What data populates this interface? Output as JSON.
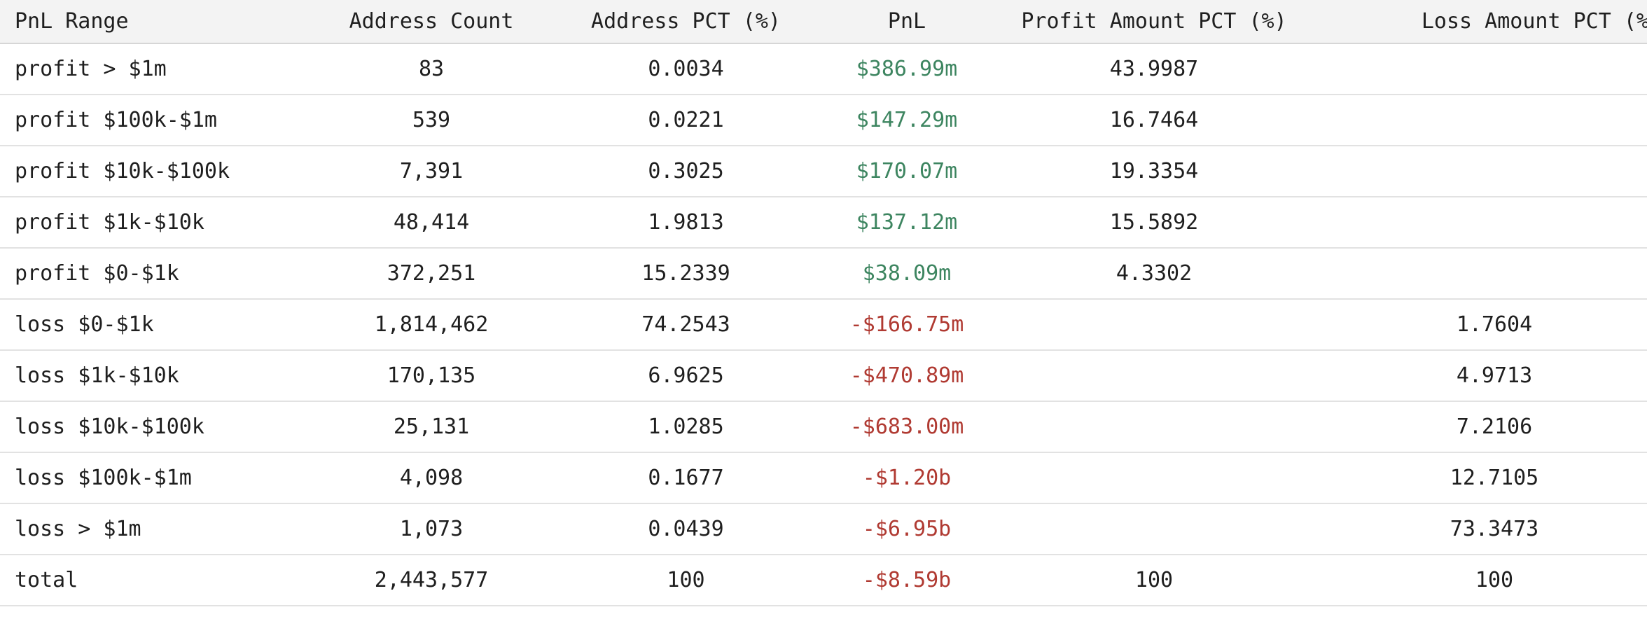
{
  "colors": {
    "positive": "#3d8560",
    "negative": "#b03a32",
    "header_bg": "#f3f3f3"
  },
  "table": {
    "columns": [
      "PnL Range",
      "Address Count",
      "Address PCT (%)",
      "PnL",
      "Profit Amount PCT (%)",
      "Loss Amount PCT (%)"
    ],
    "rows": [
      {
        "range": "profit > $1m",
        "count": "83",
        "addr_pct": "0.0034",
        "pnl": "$386.99m",
        "pnl_sign": "pos",
        "profit_pct": "43.9987",
        "loss_pct": ""
      },
      {
        "range": "profit $100k-$1m",
        "count": "539",
        "addr_pct": "0.0221",
        "pnl": "$147.29m",
        "pnl_sign": "pos",
        "profit_pct": "16.7464",
        "loss_pct": ""
      },
      {
        "range": "profit $10k-$100k",
        "count": "7,391",
        "addr_pct": "0.3025",
        "pnl": "$170.07m",
        "pnl_sign": "pos",
        "profit_pct": "19.3354",
        "loss_pct": ""
      },
      {
        "range": "profit $1k-$10k",
        "count": "48,414",
        "addr_pct": "1.9813",
        "pnl": "$137.12m",
        "pnl_sign": "pos",
        "profit_pct": "15.5892",
        "loss_pct": ""
      },
      {
        "range": "profit $0-$1k",
        "count": "372,251",
        "addr_pct": "15.2339",
        "pnl": "$38.09m",
        "pnl_sign": "pos",
        "profit_pct": "4.3302",
        "loss_pct": ""
      },
      {
        "range": "loss $0-$1k",
        "count": "1,814,462",
        "addr_pct": "74.2543",
        "pnl": "-$166.75m",
        "pnl_sign": "neg",
        "profit_pct": "",
        "loss_pct": "1.7604"
      },
      {
        "range": "loss $1k-$10k",
        "count": "170,135",
        "addr_pct": "6.9625",
        "pnl": "-$470.89m",
        "pnl_sign": "neg",
        "profit_pct": "",
        "loss_pct": "4.9713"
      },
      {
        "range": "loss $10k-$100k",
        "count": "25,131",
        "addr_pct": "1.0285",
        "pnl": "-$683.00m",
        "pnl_sign": "neg",
        "profit_pct": "",
        "loss_pct": "7.2106"
      },
      {
        "range": "loss $100k-$1m",
        "count": "4,098",
        "addr_pct": "0.1677",
        "pnl": "-$1.20b",
        "pnl_sign": "neg",
        "profit_pct": "",
        "loss_pct": "12.7105"
      },
      {
        "range": "loss > $1m",
        "count": "1,073",
        "addr_pct": "0.0439",
        "pnl": "-$6.95b",
        "pnl_sign": "neg",
        "profit_pct": "",
        "loss_pct": "73.3473"
      },
      {
        "range": "total",
        "count": "2,443,577",
        "addr_pct": "100",
        "pnl": "-$8.59b",
        "pnl_sign": "neg",
        "profit_pct": "100",
        "loss_pct": "100"
      }
    ]
  }
}
